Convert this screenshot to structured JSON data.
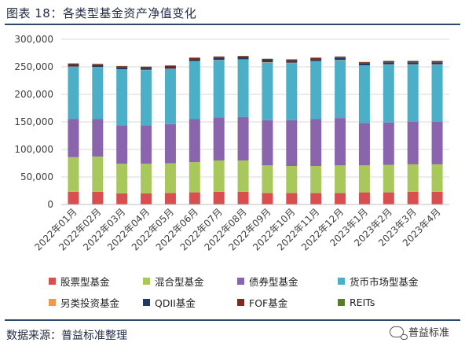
{
  "figure": {
    "title": "图表 18：各类型基金资产净值变化",
    "source": "数据来源：普益标准整理",
    "watermark": "普益标准",
    "watermark_icon": "wechat-icon"
  },
  "chart_data": {
    "type": "bar",
    "stacked": true,
    "title": "",
    "xlabel": "",
    "ylabel": "",
    "ylim": [
      0,
      300000
    ],
    "yticks": [
      0,
      50000,
      100000,
      150000,
      200000,
      250000,
      300000
    ],
    "ytick_labels": [
      "0",
      "50,000",
      "100,000",
      "150,000",
      "200,000",
      "250,000",
      "300,000"
    ],
    "grid": true,
    "legend_position": "bottom",
    "categories": [
      "2022年01月",
      "2022年02月",
      "2022年03月",
      "2022年04月",
      "2022年05月",
      "2022年06月",
      "2022年07月",
      "2022年08月",
      "2022年09月",
      "2022年10月",
      "2022年11月",
      "2022年12月",
      "2023年1月",
      "2023年2月",
      "2023年3月",
      "2023年4月"
    ],
    "series": [
      {
        "name": "股票型基金",
        "color": "#d94f4f",
        "values": [
          23000,
          23000,
          20000,
          20000,
          21000,
          22000,
          23000,
          23000,
          21000,
          21000,
          21000,
          21000,
          22000,
          22000,
          23000,
          23000
        ]
      },
      {
        "name": "混合型基金",
        "color": "#a9c85c",
        "values": [
          63000,
          64000,
          54000,
          54000,
          54000,
          55000,
          57000,
          57000,
          50000,
          49000,
          49000,
          50000,
          49000,
          50000,
          50000,
          50000
        ]
      },
      {
        "name": "债券型基金",
        "color": "#8a64ad",
        "values": [
          69000,
          68000,
          70000,
          70000,
          71000,
          78000,
          78000,
          79000,
          82000,
          83000,
          85000,
          86000,
          77000,
          77000,
          77000,
          77000
        ]
      },
      {
        "name": "货币市场型基金",
        "color": "#4bafc8",
        "values": [
          95000,
          94000,
          101000,
          100000,
          100000,
          105000,
          104000,
          104000,
          105000,
          104000,
          105000,
          105000,
          104000,
          105000,
          104000,
          104000
        ]
      },
      {
        "name": "另类投资基金",
        "color": "#f79646",
        "values": [
          600,
          600,
          600,
          600,
          600,
          600,
          600,
          600,
          600,
          600,
          600,
          600,
          600,
          600,
          600,
          600
        ]
      },
      {
        "name": "QDII基金",
        "color": "#1f3864",
        "values": [
          3500,
          3500,
          3400,
          3400,
          3400,
          3600,
          3600,
          3600,
          3500,
          3500,
          3500,
          3500,
          3600,
          3600,
          3600,
          3600
        ]
      },
      {
        "name": "FOF基金",
        "color": "#7b2c20",
        "values": [
          2000,
          2100,
          2300,
          2300,
          2300,
          2300,
          2400,
          2400,
          2300,
          2300,
          2300,
          2300,
          2200,
          2300,
          2300,
          2300
        ]
      },
      {
        "name": "REITs",
        "color": "#5a7a2e",
        "values": [
          300,
          300,
          300,
          300,
          300,
          300,
          300,
          400,
          400,
          400,
          400,
          500,
          500,
          500,
          500,
          500
        ]
      }
    ]
  }
}
